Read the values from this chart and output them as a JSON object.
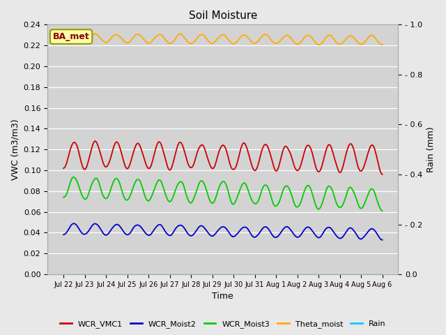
{
  "title": "Soil Moisture",
  "xlabel": "Time",
  "ylabel_left": "VWC (m3/m3)",
  "ylabel_right": "Rain (mm)",
  "annotation": "BA_met",
  "ylim_left": [
    0.0,
    0.24
  ],
  "ylim_right": [
    0.0,
    1.0
  ],
  "fig_bg_color": "#e8e8e8",
  "plot_bg_color": "#d3d3d3",
  "series": {
    "WCR_VMC1": {
      "color": "#cc0000",
      "base": 0.115,
      "amp": 0.015,
      "period": 1.0,
      "trend": -0.004
    },
    "WCR_Moist2": {
      "color": "#0000cc",
      "base": 0.044,
      "amp": 0.006,
      "period": 1.0,
      "trend": -0.005
    },
    "WCR_Moist3": {
      "color": "#00cc00",
      "base": 0.084,
      "amp": 0.012,
      "period": 1.0,
      "trend": -0.012
    },
    "Theta_moist": {
      "color": "#ffaa00",
      "base": 0.227,
      "amp": 0.005,
      "period": 1.0,
      "trend": -0.002
    },
    "Rain": {
      "color": "#00ccff",
      "base": 0.0,
      "amp": 0.0,
      "period": 1.0,
      "trend": 0.0
    }
  },
  "tick_labels": [
    "Jul 22",
    "Jul 23",
    "Jul 24",
    "Jul 25",
    "Jul 26",
    "Jul 27",
    "Jul 28",
    "Jul 29",
    "Jul 30",
    "Jul 31",
    "Aug 1",
    "Aug 2",
    "Aug 3",
    "Aug 4",
    "Aug 5",
    "Aug 6"
  ],
  "n_points": 480,
  "days": 15,
  "yticks_left": [
    0.0,
    0.02,
    0.04,
    0.06,
    0.08,
    0.1,
    0.12,
    0.14,
    0.16,
    0.18,
    0.2,
    0.22,
    0.24
  ],
  "yticks_right": [
    0.0,
    0.2,
    0.4,
    0.6,
    0.8,
    1.0
  ],
  "title_fontsize": 11,
  "axis_label_fontsize": 9,
  "tick_fontsize": 8,
  "xtick_fontsize": 7
}
